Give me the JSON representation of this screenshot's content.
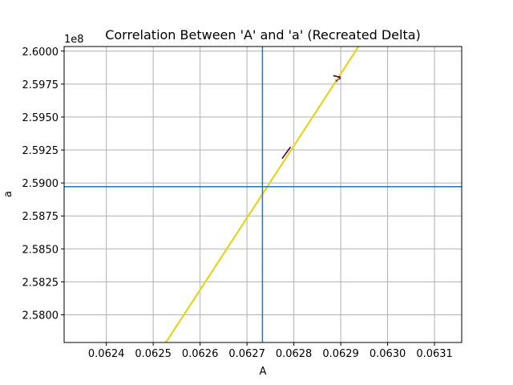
{
  "chart_data": {
    "type": "line",
    "title": "Correlation Between 'A' and 'a' (Recreated Delta)",
    "xlabel": "A",
    "ylabel": "a",
    "y_offset_label": "1e8",
    "xlim": [
      0.06231,
      0.063158
    ],
    "ylim": [
      2.5779,
      2.60035
    ],
    "x_ticks": [
      0.0624,
      0.0625,
      0.0626,
      0.0627,
      0.0628,
      0.0629,
      0.063,
      0.0631
    ],
    "x_tick_labels": [
      "0.0624",
      "0.0625",
      "0.0626",
      "0.0627",
      "0.0628",
      "0.0629",
      "0.0630",
      "0.0631"
    ],
    "y_ticks": [
      2.58,
      2.5825,
      2.585,
      2.5875,
      2.59,
      2.5925,
      2.595,
      2.5975,
      2.6
    ],
    "y_tick_labels": [
      "2.5800",
      "2.5825",
      "2.5850",
      "2.5875",
      "2.5900",
      "2.5925",
      "2.5950",
      "2.5975",
      "2.6000"
    ],
    "grid": true,
    "series": [
      {
        "values": [
          [
            0.062527,
            2.5779
          ],
          [
            0.062938,
            2.60035
          ]
        ],
        "color": "#fde725"
      },
      {
        "values": [
          [
            0.062527,
            2.5779
          ],
          [
            0.062938,
            2.60035
          ]
        ],
        "color": "#d4c03a"
      }
    ],
    "contour_marks": [
      {
        "label": "1",
        "points": [
          [
            0.062884,
            2.59814
          ],
          [
            0.062898,
            2.59803
          ],
          [
            0.062896,
            2.59795
          ]
        ],
        "color": "#440154"
      },
      {
        "points": [
          [
            0.062775,
            2.59185
          ],
          [
            0.062793,
            2.59273
          ]
        ],
        "color": "#440154"
      }
    ],
    "reference_lines": {
      "vertical_x": 0.062733,
      "horizontal_y": 2.58972,
      "color": "#1f77b4"
    },
    "colors": {
      "grid": "#b0b0b0",
      "axes": "#000000",
      "background": "#ffffff"
    }
  }
}
